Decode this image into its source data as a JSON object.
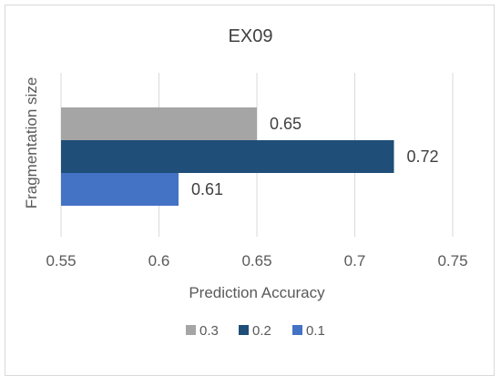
{
  "chart_data": {
    "type": "bar",
    "orientation": "horizontal",
    "title": "EX09",
    "xlabel": "Prediction Accuracy",
    "ylabel": "Fragmentation size",
    "xlim": [
      0.55,
      0.75
    ],
    "xticks": [
      "0.55",
      "0.6",
      "0.65",
      "0.7",
      "0.75"
    ],
    "grid": true,
    "legend_position": "bottom",
    "series": [
      {
        "name": "0.3",
        "value": 0.65,
        "label": "0.65",
        "color": "#a5a5a5"
      },
      {
        "name": "0.2",
        "value": 0.72,
        "label": "0.72",
        "color": "#1f4e79"
      },
      {
        "name": "0.1",
        "value": 0.61,
        "label": "0.61",
        "color": "#4472c4"
      }
    ]
  }
}
